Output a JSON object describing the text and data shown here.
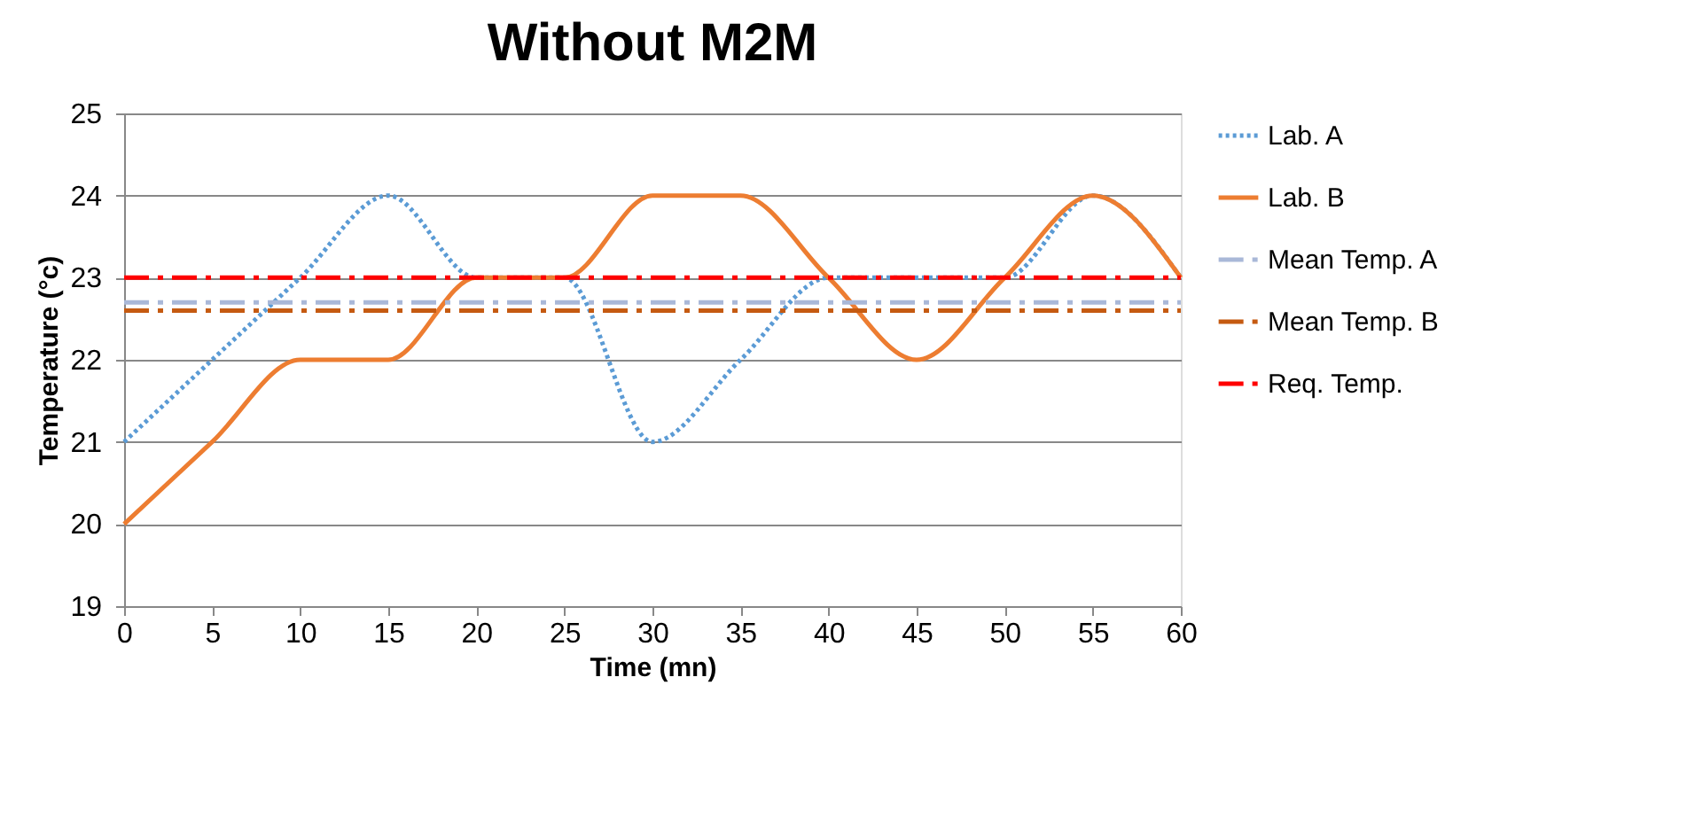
{
  "chart_data": {
    "type": "line",
    "title": "Without  M2M",
    "xlabel": "Time (mn)",
    "ylabel": "Temperature  (°c)",
    "x": [
      0,
      5,
      10,
      15,
      20,
      25,
      30,
      35,
      40,
      45,
      50,
      55,
      60
    ],
    "series": [
      {
        "name": "Lab. A",
        "color": "#5b9bd5",
        "line_style": "dotted",
        "values": [
          21,
          22,
          23,
          24,
          23,
          23,
          21,
          22,
          23,
          23,
          23,
          24,
          23
        ]
      },
      {
        "name": "Lab. B",
        "color": "#ed7d31",
        "line_style": "solid",
        "values": [
          20,
          21,
          22,
          22,
          23,
          23,
          24,
          24,
          23,
          22,
          23,
          24,
          23
        ]
      },
      {
        "name": "Mean Temp. A",
        "color": "#a9b8d8",
        "line_style": "dashed",
        "values": [
          22.7,
          22.7,
          22.7,
          22.7,
          22.7,
          22.7,
          22.7,
          22.7,
          22.7,
          22.7,
          22.7,
          22.7,
          22.7
        ]
      },
      {
        "name": "Mean Temp. B",
        "color": "#c55a11",
        "line_style": "dashed",
        "values": [
          22.6,
          22.6,
          22.6,
          22.6,
          22.6,
          22.6,
          22.6,
          22.6,
          22.6,
          22.6,
          22.6,
          22.6,
          22.6
        ]
      },
      {
        "name": "Req. Temp.",
        "color": "#ff0000",
        "line_style": "dashed",
        "values": [
          23,
          23,
          23,
          23,
          23,
          23,
          23,
          23,
          23,
          23,
          23,
          23,
          23
        ]
      }
    ],
    "xlim": [
      0,
      60
    ],
    "xticks": [
      0,
      5,
      10,
      15,
      20,
      25,
      30,
      35,
      40,
      45,
      50,
      55,
      60
    ],
    "ylim": [
      19,
      25
    ],
    "yticks": [
      19,
      20,
      21,
      22,
      23,
      24,
      25
    ],
    "grid": "y",
    "legend": "right",
    "marker": "none"
  }
}
